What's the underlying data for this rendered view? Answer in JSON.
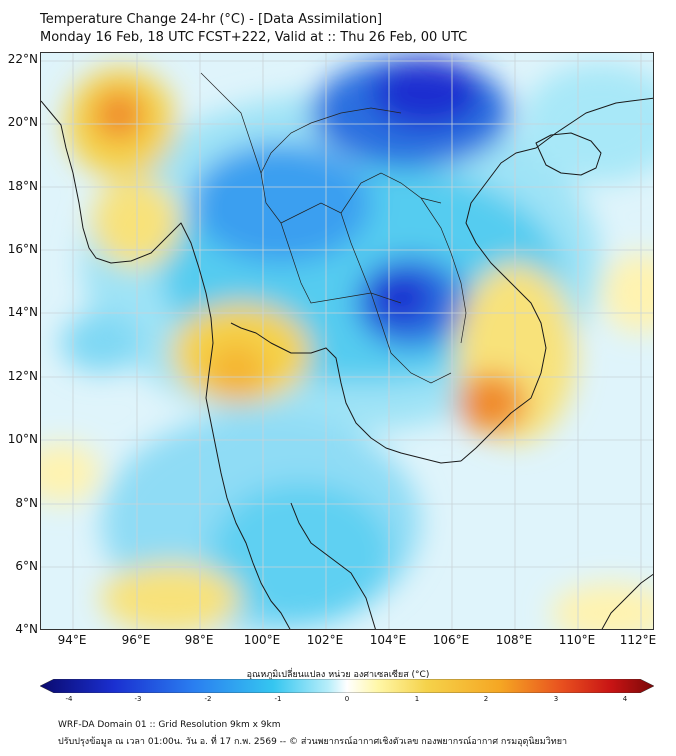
{
  "title_line1": "Temperature Change 24-hr (°C) - [Data Assimilation]",
  "title_line2": "Monday 16 Feb, 18 UTC FCST+222, Valid at :: Thu 26 Feb, 00 UTC",
  "lat_labels": [
    "22°N",
    "20°N",
    "18°N",
    "16°N",
    "14°N",
    "12°N",
    "10°N",
    "8°N",
    "6°N",
    "4°N"
  ],
  "lon_labels": [
    "94°E",
    "96°E",
    "98°E",
    "100°E",
    "102°E",
    "104°E",
    "106°E",
    "108°E",
    "110°E",
    "112°E"
  ],
  "colorbar": {
    "title": "อุณหภูมิเปลี่ยนแปลง หน่วย องศาเซลเซียส (°C)",
    "ticks": [
      "-4",
      "-3",
      "-2",
      "-1",
      "0",
      "1",
      "2",
      "3",
      "4"
    ],
    "colors": [
      "#0a0a6e",
      "#1a2fd0",
      "#2a7ef0",
      "#35c6f0",
      "#b8eefa",
      "#ffffff",
      "#fff7a8",
      "#f5d24a",
      "#f5a623",
      "#e8501f",
      "#c81414",
      "#7a0808"
    ]
  },
  "footer_line1": "WRF-DA Domain 01 :: Grid Resolution 9km x 9km",
  "footer_line2": "ปรับปรุงข้อมูล ณ เวลา 01:00น. วัน อ. ที่ 17 ก.พ. 2569 -- © ส่วนพยากรณ์อากาศเชิงตัวเลข กองพยากรณ์อากาศ กรมอุตุนิยมวิทยา",
  "colors": {
    "strong_cooling": "#1a2fd0",
    "cooling": "#35c6f0",
    "neutral": "#e9f8fd",
    "warming": "#f5d24a",
    "strong_warming": "#f08a2a"
  }
}
